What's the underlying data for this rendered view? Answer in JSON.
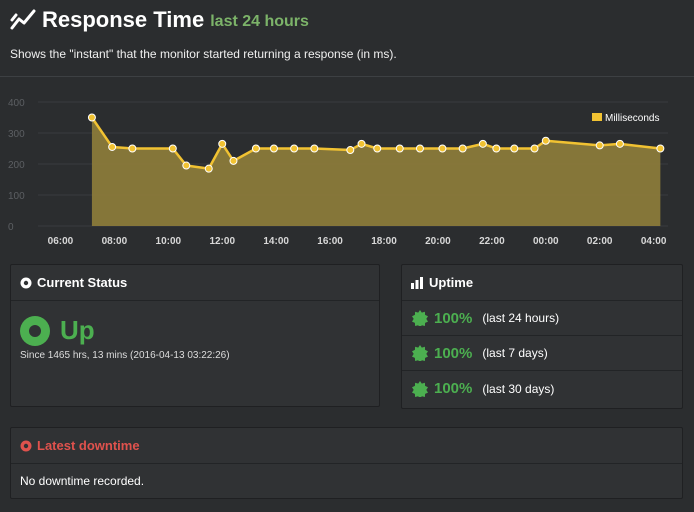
{
  "header": {
    "title": "Response Time",
    "subtitle": "last 24 hours",
    "icon": "line-chart-icon",
    "description": "Shows the \"instant\" that the monitor started returning a response (in ms)."
  },
  "chart_data": {
    "type": "area",
    "series": [
      {
        "name": "Milliseconds",
        "color": "#f1c232",
        "fill": "#8a7a3a",
        "points": [
          [
            "07:10",
            350
          ],
          [
            "07:55",
            255
          ],
          [
            "08:40",
            250
          ],
          [
            "10:10",
            250
          ],
          [
            "10:40",
            195
          ],
          [
            "11:30",
            185
          ],
          [
            "12:00",
            265
          ],
          [
            "12:25",
            210
          ],
          [
            "13:15",
            250
          ],
          [
            "13:55",
            250
          ],
          [
            "14:40",
            250
          ],
          [
            "15:25",
            250
          ],
          [
            "16:45",
            245
          ],
          [
            "17:10",
            265
          ],
          [
            "17:45",
            250
          ],
          [
            "18:35",
            250
          ],
          [
            "19:20",
            250
          ],
          [
            "20:10",
            250
          ],
          [
            "20:55",
            250
          ],
          [
            "21:40",
            265
          ],
          [
            "22:10",
            250
          ],
          [
            "22:50",
            250
          ],
          [
            "23:35",
            250
          ],
          [
            "24:00",
            275
          ],
          [
            "26:00",
            260
          ],
          [
            "26:45",
            265
          ],
          [
            "28:15",
            250
          ]
        ]
      }
    ],
    "x_ticks": [
      "06:00",
      "08:00",
      "10:00",
      "12:00",
      "14:00",
      "16:00",
      "18:00",
      "20:00",
      "22:00",
      "00:00",
      "02:00",
      "04:00"
    ],
    "y_ticks": [
      0,
      100,
      200,
      300,
      400
    ],
    "ylim": [
      0,
      400
    ],
    "legend": "top-right",
    "grid": true
  },
  "current_status": {
    "title": "Current Status",
    "status": "Up",
    "since": "Since 1465 hrs, 13 mins (2016-04-13 03:22:26)",
    "color": "#4caf50"
  },
  "uptime": {
    "title": "Uptime",
    "rows": [
      {
        "pct": "100%",
        "period": "(last 24 hours)"
      },
      {
        "pct": "100%",
        "period": "(last 7 days)"
      },
      {
        "pct": "100%",
        "period": "(last 30 days)"
      }
    ]
  },
  "latest_downtime": {
    "title": "Latest downtime",
    "message": "No downtime recorded.",
    "color": "#e0524d"
  }
}
